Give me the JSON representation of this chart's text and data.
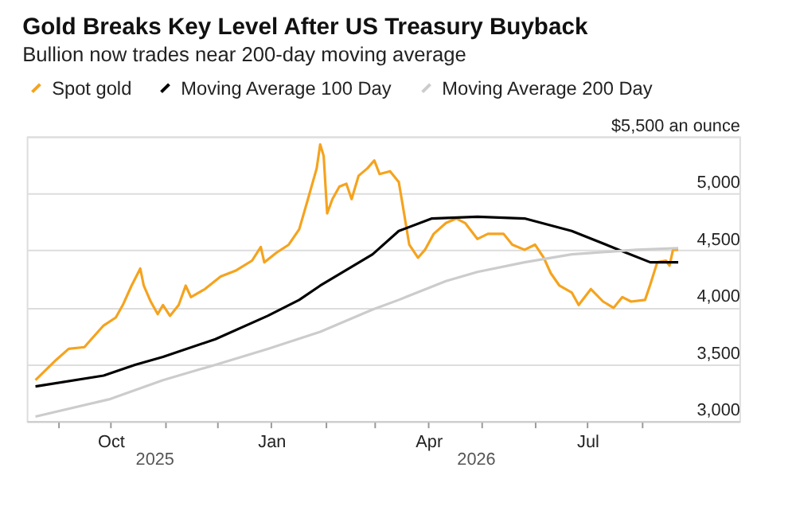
{
  "chart_data": {
    "type": "line",
    "title": "Gold Breaks Key Level After US Treasury Buyback",
    "subtitle": "Bullion now trades near 200-day moving average",
    "series": [
      {
        "name": "Spot gold",
        "color": "#f5a31e",
        "x": [
          "2025-08-19",
          "2025-08-31",
          "2025-09-07",
          "2025-09-16",
          "2025-09-20",
          "2025-09-27",
          "2025-10-04",
          "2025-10-08",
          "2025-10-13",
          "2025-10-18",
          "2025-10-20",
          "2025-10-24",
          "2025-10-28",
          "2025-10-31",
          "2025-11-04",
          "2025-11-09",
          "2025-11-13",
          "2025-11-16",
          "2025-11-24",
          "2025-12-03",
          "2025-12-12",
          "2025-12-21",
          "2025-12-26",
          "2025-12-28",
          "2026-01-04",
          "2026-01-11",
          "2026-01-17",
          "2026-01-22",
          "2026-01-27",
          "2026-01-29",
          "2026-01-31",
          "2026-02-02",
          "2026-02-05",
          "2026-02-09",
          "2026-02-13",
          "2026-02-16",
          "2026-02-20",
          "2026-02-25",
          "2026-03-01",
          "2026-03-04",
          "2026-03-10",
          "2026-03-15",
          "2026-03-17",
          "2026-03-21",
          "2026-03-26",
          "2026-03-30",
          "2026-04-04",
          "2026-04-11",
          "2026-04-17",
          "2026-04-22",
          "2026-04-29",
          "2026-05-05",
          "2026-05-14",
          "2026-05-19",
          "2026-05-26",
          "2026-06-01",
          "2026-06-06",
          "2026-06-10",
          "2026-06-15",
          "2026-06-22",
          "2026-06-26",
          "2026-07-03",
          "2026-07-10",
          "2026-07-16",
          "2026-07-21",
          "2026-07-26",
          "2026-08-03",
          "2026-08-06",
          "2026-08-10",
          "2026-08-15",
          "2026-08-17",
          "2026-08-19",
          "2026-08-22"
        ],
        "values": [
          3360,
          3540,
          3635,
          3650,
          3720,
          3840,
          3910,
          4020,
          4190,
          4340,
          4190,
          4050,
          3940,
          4020,
          3925,
          4020,
          4190,
          4090,
          4160,
          4270,
          4325,
          4410,
          4530,
          4395,
          4480,
          4550,
          4685,
          4950,
          5220,
          5430,
          5330,
          4825,
          4950,
          5060,
          5085,
          4950,
          5155,
          5220,
          5290,
          5170,
          5195,
          5100,
          4920,
          4550,
          4435,
          4505,
          4645,
          4740,
          4780,
          4740,
          4600,
          4645,
          4645,
          4550,
          4505,
          4550,
          4435,
          4300,
          4190,
          4130,
          4020,
          4160,
          4050,
          3995,
          4090,
          4050,
          4065,
          4200,
          4395,
          4410,
          4365,
          4505,
          4505
        ]
      },
      {
        "name": "Moving Average 100 Day",
        "color": "#000000",
        "x": [
          "2025-08-19",
          "2025-09-27",
          "2025-10-15",
          "2025-10-31",
          "2025-11-30",
          "2025-12-30",
          "2026-01-17",
          "2026-01-29",
          "2026-02-28",
          "2026-03-15",
          "2026-04-03",
          "2026-04-29",
          "2026-05-26",
          "2026-06-22",
          "2026-07-19",
          "2026-08-06",
          "2026-08-22"
        ],
        "values": [
          3305,
          3400,
          3495,
          3565,
          3720,
          3925,
          4065,
          4190,
          4465,
          4670,
          4780,
          4795,
          4780,
          4670,
          4505,
          4395,
          4395
        ]
      },
      {
        "name": "Moving Average 200 Day",
        "color": "#cccccc",
        "x": [
          "2025-08-19",
          "2025-10-01",
          "2025-10-31",
          "2025-11-30",
          "2025-12-30",
          "2026-01-29",
          "2026-02-28",
          "2026-03-15",
          "2026-04-11",
          "2026-04-29",
          "2026-05-26",
          "2026-06-22",
          "2026-07-29",
          "2026-08-22"
        ],
        "values": [
          3040,
          3195,
          3360,
          3495,
          3635,
          3785,
          3980,
          4065,
          4230,
          4310,
          4395,
          4465,
          4505,
          4520
        ]
      }
    ],
    "xlim": [
      "2025-08-14",
      "2026-09-26"
    ],
    "xticks": [
      {
        "value": "2025-09-01",
        "label": null
      },
      {
        "value": "2025-10-01",
        "label": "Oct"
      },
      {
        "value": "2025-11-01",
        "label": null
      },
      {
        "value": "2025-12-01",
        "label": null
      },
      {
        "value": "2026-01-01",
        "label": "Jan"
      },
      {
        "value": "2026-02-01",
        "label": null
      },
      {
        "value": "2026-03-01",
        "label": null
      },
      {
        "value": "2026-04-01",
        "label": "Apr"
      },
      {
        "value": "2026-05-01",
        "label": null
      },
      {
        "value": "2026-06-01",
        "label": null
      },
      {
        "value": "2026-07-01",
        "label": "Jul"
      },
      {
        "value": "2026-08-01",
        "label": null
      }
    ],
    "x2lim": [
      "2025-08-14",
      "2026-09-26"
    ],
    "x2ticks": [
      {
        "value": "2025-10-26",
        "label": "2025"
      },
      {
        "value": "2026-01-01",
        "label": null
      },
      {
        "value": "2026-04-28",
        "label": "2026"
      }
    ],
    "ylim": [
      3000,
      5500
    ],
    "yticks": [
      {
        "value": 3000,
        "label": "3,000"
      },
      {
        "value": 3500,
        "label": "3,500"
      },
      {
        "value": 4000,
        "label": "4,000"
      },
      {
        "value": 4500,
        "label": "4,500"
      },
      {
        "value": 5000,
        "label": "5,000"
      },
      {
        "value": 5500,
        "label": "$5,500 an ounce"
      }
    ],
    "grid": "y",
    "legend": "top left",
    "marker": "none",
    "line_style": "solid"
  }
}
